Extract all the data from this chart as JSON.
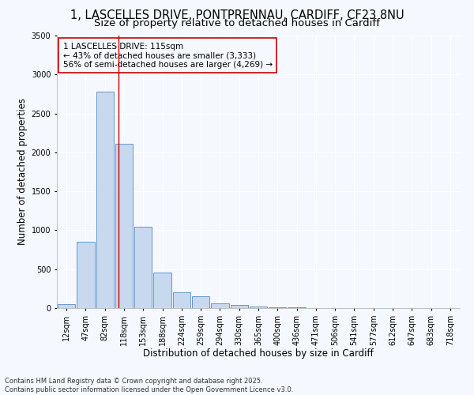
{
  "title_line1": "1, LASCELLES DRIVE, PONTPRENNAU, CARDIFF, CF23 8NU",
  "title_line2": "Size of property relative to detached houses in Cardiff",
  "xlabel": "Distribution of detached houses by size in Cardiff",
  "ylabel": "Number of detached properties",
  "categories": [
    "12sqm",
    "47sqm",
    "82sqm",
    "118sqm",
    "153sqm",
    "188sqm",
    "224sqm",
    "259sqm",
    "294sqm",
    "330sqm",
    "365sqm",
    "400sqm",
    "436sqm",
    "471sqm",
    "506sqm",
    "541sqm",
    "577sqm",
    "612sqm",
    "647sqm",
    "683sqm",
    "718sqm"
  ],
  "values": [
    55,
    855,
    2780,
    2110,
    1040,
    455,
    205,
    150,
    65,
    40,
    25,
    15,
    8,
    3,
    1,
    1,
    0,
    0,
    0,
    0,
    0
  ],
  "bar_color": "#c8d8ee",
  "bar_edge_color": "#6699cc",
  "vline_x": 2.72,
  "vline_color": "#cc0000",
  "annotation_text": "1 LASCELLES DRIVE: 115sqm\n← 43% of detached houses are smaller (3,333)\n56% of semi-detached houses are larger (4,269) →",
  "box_edge_color": "#cc0000",
  "background_color": "#f5f8ff",
  "grid_color": "#ffffff",
  "ylim": [
    0,
    3500
  ],
  "footer_text": "Contains HM Land Registry data © Crown copyright and database right 2025.\nContains public sector information licensed under the Open Government Licence v3.0.",
  "title_fontsize": 10.5,
  "subtitle_fontsize": 9.5,
  "axis_label_fontsize": 8.5,
  "tick_fontsize": 7,
  "annotation_fontsize": 7.5,
  "footer_fontsize": 6
}
